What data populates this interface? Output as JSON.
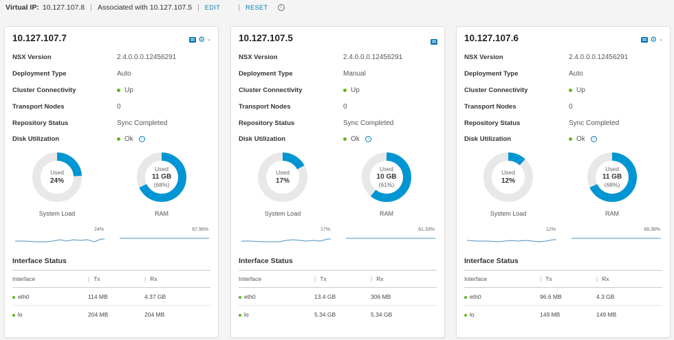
{
  "header": {
    "label": "Virtual IP:",
    "ip": "10.127.107.8",
    "associated": "Associated with 10.127.107.5",
    "edit": "EDIT",
    "reset": "RESET"
  },
  "labels": {
    "nsx_version": "NSX Version",
    "deployment_type": "Deployment Type",
    "cluster_connectivity": "Cluster Connectivity",
    "transport_nodes": "Transport Nodes",
    "repository_status": "Repository Status",
    "disk_utilization": "Disk Utilization",
    "used": "Used",
    "system_load": "System Load",
    "ram": "RAM",
    "interface_status": "Interface Status",
    "col_interface": "Interface",
    "col_tx": "Tx",
    "col_rx": "Rx"
  },
  "colors": {
    "accent": "#0079b8",
    "ok": "#60b515",
    "gauge_track": "#e8e8e8",
    "gauge_fill": "#0095d3"
  },
  "cards": [
    {
      "title": "10.127.107.7",
      "show_gear": true,
      "nsx_version": "2.4.0.0.0.12456291",
      "deployment_type": "Auto",
      "cluster_connectivity": "Up",
      "transport_nodes": "0",
      "repository_status": "Sync Completed",
      "disk_utilization": "Ok",
      "system_load_value": "24%",
      "system_load_fraction": 0.24,
      "ram_value": "11 GB",
      "ram_pct": "(68%)",
      "ram_fraction": 0.68,
      "load_spark_label": "24%",
      "ram_spark_label": "67.96%",
      "interfaces": [
        {
          "name": "eth0",
          "tx": "114 MB",
          "rx": "4.37 GB"
        },
        {
          "name": "lo",
          "tx": "204 MB",
          "rx": "204 MB"
        }
      ]
    },
    {
      "title": "10.127.107.5",
      "show_gear": false,
      "nsx_version": "2.4.0.0.0.12456291",
      "deployment_type": "Manual",
      "cluster_connectivity": "Up",
      "transport_nodes": "0",
      "repository_status": "Sync Completed",
      "disk_utilization": "Ok",
      "system_load_value": "17%",
      "system_load_fraction": 0.17,
      "ram_value": "10 GB",
      "ram_pct": "(61%)",
      "ram_fraction": 0.61,
      "load_spark_label": "17%",
      "ram_spark_label": "61.33%",
      "interfaces": [
        {
          "name": "eth0",
          "tx": "13.4 GB",
          "rx": "306 MB"
        },
        {
          "name": "lo",
          "tx": "5.34 GB",
          "rx": "5.34 GB"
        }
      ]
    },
    {
      "title": "10.127.107.6",
      "show_gear": true,
      "nsx_version": "2.4.0.0.0.12456291",
      "deployment_type": "Auto",
      "cluster_connectivity": "Up",
      "transport_nodes": "0",
      "repository_status": "Sync Completed",
      "disk_utilization": "Ok",
      "system_load_value": "12%",
      "system_load_fraction": 0.12,
      "ram_value": "11 GB",
      "ram_pct": "(68%)",
      "ram_fraction": 0.68,
      "load_spark_label": "12%",
      "ram_spark_label": "68.38%",
      "interfaces": [
        {
          "name": "eth0",
          "tx": "96.6 MB",
          "rx": "4.3 GB"
        },
        {
          "name": "lo",
          "tx": "149 MB",
          "rx": "149 MB"
        }
      ]
    }
  ]
}
